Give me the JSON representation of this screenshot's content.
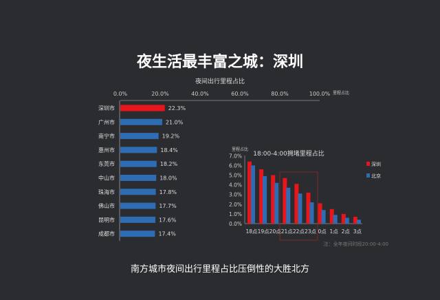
{
  "title": "夜生活最丰富之城：深圳",
  "subtitle": "南方城市夜间出行里程占比压倒性的大胜北方",
  "chart_data": [
    {
      "type": "bar",
      "orientation": "horizontal",
      "title": "夜间出行里程占比",
      "xlabel": "里程占比",
      "xlim": [
        0,
        100
      ],
      "xticks": [
        "0.0%",
        "20.0%",
        "40.0%",
        "60.0%",
        "80.0%",
        "100.0%"
      ],
      "categories": [
        "深圳市",
        "广州市",
        "南宁市",
        "惠州市",
        "东莞市",
        "中山市",
        "珠海市",
        "佛山市",
        "昆明市",
        "成都市"
      ],
      "values": [
        22.3,
        21.0,
        19.2,
        18.4,
        18.2,
        18.0,
        17.8,
        17.7,
        17.6,
        17.4
      ],
      "labels": [
        "22.3%",
        "21.0%",
        "19.2%",
        "18.4%",
        "18.2%",
        "18.0%",
        "17.8%",
        "17.7%",
        "17.6%",
        "17.4%"
      ],
      "colors": {
        "highlight": "#e8161b",
        "normal": "#2e6db4"
      }
    },
    {
      "type": "bar",
      "title": "18:00-4:00拥堵里程占比",
      "ylabel": "里程占比",
      "ylim": [
        0,
        7
      ],
      "yticks": [
        "0.0%",
        "1.0%",
        "2.0%",
        "3.0%",
        "4.0%",
        "5.0%",
        "6.0%",
        "7.0%"
      ],
      "categories": [
        "18点",
        "19点",
        "20点",
        "21点",
        "22点",
        "23点",
        "0点",
        "1点",
        "2点",
        "3点"
      ],
      "series": [
        {
          "name": "深圳",
          "color": "#e8161b",
          "values": [
            6.4,
            5.6,
            5.0,
            4.7,
            4.1,
            3.2,
            2.1,
            1.5,
            1.0,
            0.7
          ]
        },
        {
          "name": "北京",
          "color": "#2e6db4",
          "values": [
            6.0,
            4.9,
            4.2,
            3.7,
            3.1,
            2.2,
            1.4,
            0.9,
            0.6,
            0.4
          ]
        }
      ],
      "legend": "right",
      "note": "注：全年夜间时段20:00-4:00"
    }
  ]
}
